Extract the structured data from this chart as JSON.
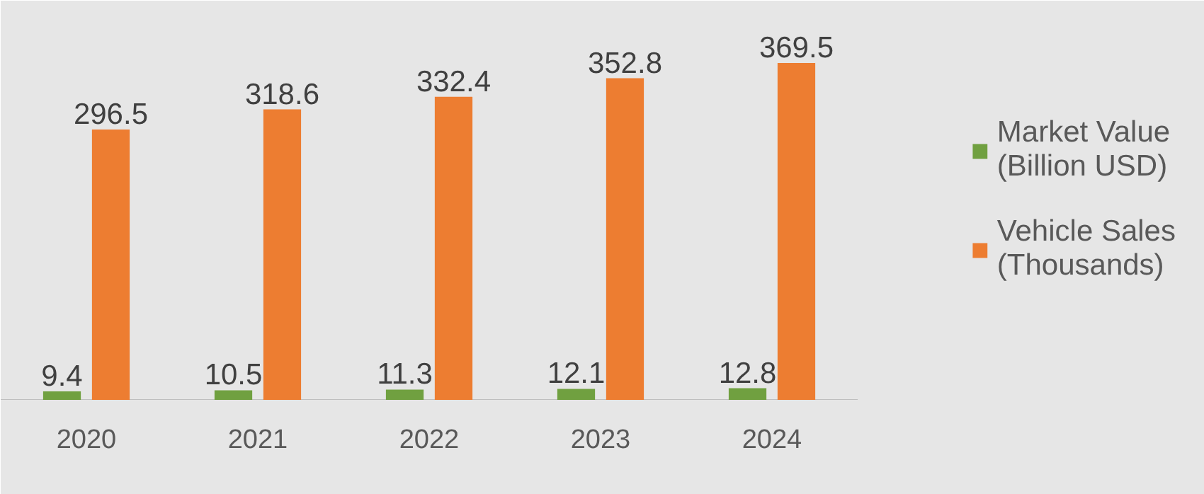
{
  "chart_data": {
    "type": "bar",
    "categories": [
      "2020",
      "2021",
      "2022",
      "2023",
      "2024"
    ],
    "series": [
      {
        "name": "Market Value (Billion USD)",
        "color": "#70a040",
        "values": [
          9.4,
          10.5,
          11.3,
          12.1,
          12.8
        ]
      },
      {
        "name": "Vehicle Sales (Thousands)",
        "color": "#ed7d31",
        "values": [
          296.5,
          318.6,
          332.4,
          352.8,
          369.5
        ]
      }
    ],
    "data_labels": true,
    "legend": "right"
  }
}
